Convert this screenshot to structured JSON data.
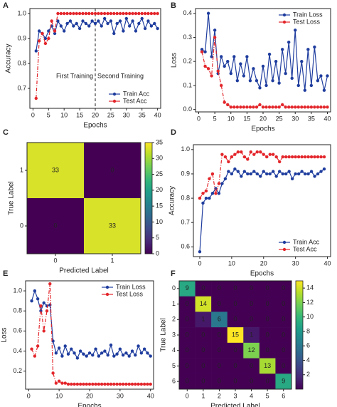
{
  "chart_data": [
    {
      "type": "line",
      "label": "A",
      "xlabel": "Epochs",
      "ylabel": "Accuracy",
      "x": [
        1,
        2,
        3,
        4,
        5,
        6,
        7,
        8,
        9,
        10,
        11,
        12,
        13,
        14,
        15,
        16,
        17,
        18,
        19,
        20,
        21,
        22,
        23,
        24,
        25,
        26,
        27,
        28,
        29,
        30,
        31,
        32,
        33,
        34,
        35,
        36,
        37,
        38,
        39,
        40
      ],
      "series": [
        {
          "name": "Train Acc",
          "color": "#1f3d9e",
          "values": [
            0.85,
            0.93,
            0.92,
            0.9,
            0.93,
            0.95,
            0.92,
            0.97,
            0.95,
            0.93,
            0.96,
            0.97,
            0.95,
            0.96,
            0.94,
            0.97,
            0.96,
            0.95,
            0.97,
            0.96,
            0.97,
            0.95,
            0.98,
            0.96,
            0.97,
            0.92,
            0.96,
            0.97,
            0.93,
            0.98,
            0.95,
            0.97,
            0.93,
            0.96,
            0.98,
            0.94,
            0.97,
            0.95,
            0.96,
            0.94
          ]
        },
        {
          "name": "Test Acc",
          "color": "#e3262b",
          "values": [
            0.66,
            0.89,
            0.92,
            0.88,
            0.9,
            0.97,
            0.93,
            1.0,
            1.0,
            1.0,
            1.0,
            1.0,
            1.0,
            1.0,
            1.0,
            1.0,
            1.0,
            1.0,
            1.0,
            1.0,
            1.0,
            1.0,
            1.0,
            1.0,
            1.0,
            1.0,
            1.0,
            1.0,
            1.0,
            1.0,
            1.0,
            1.0,
            1.0,
            1.0,
            1.0,
            1.0,
            1.0,
            1.0,
            1.0,
            1.0
          ]
        }
      ],
      "xlim": [
        -1,
        41
      ],
      "ylim": [
        0.62,
        1.02
      ],
      "xticks": [
        0,
        5,
        10,
        15,
        20,
        25,
        30,
        35,
        40
      ],
      "yticks": [
        0.7,
        0.8,
        0.9,
        {
          "value": 1,
          "label": "1.0"
        }
      ],
      "vline": 20,
      "annotations": [
        "First Training",
        "Second Training"
      ],
      "legend": "lower right"
    },
    {
      "type": "line",
      "label": "B",
      "xlabel": "Epochs",
      "ylabel": "Loss",
      "x": [
        1,
        2,
        3,
        4,
        5,
        6,
        7,
        8,
        9,
        10,
        11,
        12,
        13,
        14,
        15,
        16,
        17,
        18,
        19,
        20,
        21,
        22,
        23,
        24,
        25,
        26,
        27,
        28,
        29,
        30,
        31,
        32,
        33,
        34,
        35,
        36,
        37,
        38,
        39,
        40
      ],
      "series": [
        {
          "name": "Train Loss",
          "color": "#1f3d9e",
          "values": [
            0.25,
            0.24,
            0.4,
            0.22,
            0.33,
            0.15,
            0.22,
            0.18,
            0.2,
            0.15,
            0.22,
            0.12,
            0.19,
            0.14,
            0.22,
            0.12,
            0.17,
            0.12,
            0.09,
            0.18,
            0.1,
            0.23,
            0.12,
            0.2,
            0.11,
            0.25,
            0.15,
            0.28,
            0.13,
            0.33,
            0.1,
            0.2,
            0.08,
            0.25,
            0.1,
            0.26,
            0.12,
            0.14,
            0.08,
            0.14
          ]
        },
        {
          "name": "Test Loss",
          "color": "#e3262b",
          "values": [
            0.24,
            0.18,
            0.17,
            0.14,
            0.3,
            0.16,
            0.1,
            0.03,
            0.02,
            0.01,
            0.01,
            0.01,
            0.01,
            0.01,
            0.01,
            0.01,
            0.01,
            0.01,
            0.02,
            0.01,
            0.01,
            0.01,
            0.01,
            0.01,
            0.01,
            0.02,
            0.01,
            0.01,
            0.01,
            0.01,
            0.01,
            0.01,
            0.01,
            0.01,
            0.01,
            0.01,
            0.01,
            0.01,
            0.01,
            0.01
          ]
        }
      ],
      "xlim": [
        -1,
        41
      ],
      "ylim": [
        -0.01,
        0.42
      ],
      "xticks": [
        0,
        5,
        10,
        15,
        20,
        25,
        30,
        35,
        40
      ],
      "yticks": [
        {
          "value": 0,
          "label": "0.0"
        },
        0.1,
        0.2,
        0.3,
        0.4
      ],
      "legend": "upper right"
    },
    {
      "type": "heatmap",
      "label": "C",
      "xlabel": "Predicted Label",
      "ylabel": "True Label",
      "x_categories": [
        "0",
        "1"
      ],
      "y_categories": [
        "1",
        "0"
      ],
      "values": [
        [
          33,
          0
        ],
        [
          0,
          33
        ]
      ],
      "vlim": [
        0,
        35
      ],
      "cticks": [
        0,
        5,
        10,
        15,
        20,
        25,
        30,
        35
      ]
    },
    {
      "type": "line",
      "label": "D",
      "xlabel": "Epochs",
      "ylabel": "Accuracy",
      "x": [
        0,
        1,
        2,
        3,
        4,
        5,
        6,
        7,
        8,
        9,
        10,
        11,
        12,
        13,
        14,
        15,
        16,
        17,
        18,
        19,
        20,
        21,
        22,
        23,
        24,
        25,
        26,
        27,
        28,
        29,
        30,
        31,
        32,
        33,
        34,
        35,
        36,
        37,
        38,
        39
      ],
      "series": [
        {
          "name": "Train Acc",
          "color": "#1f3d9e",
          "values": [
            0.58,
            0.78,
            0.8,
            0.8,
            0.82,
            0.84,
            0.82,
            0.86,
            0.88,
            0.91,
            0.9,
            0.92,
            0.91,
            0.89,
            0.91,
            0.9,
            0.9,
            0.91,
            0.9,
            0.89,
            0.91,
            0.9,
            0.9,
            0.91,
            0.89,
            0.91,
            0.9,
            0.9,
            0.91,
            0.88,
            0.9,
            0.9,
            0.91,
            0.9,
            0.9,
            0.91,
            0.89,
            0.9,
            0.91,
            0.92
          ]
        },
        {
          "name": "Test Acc",
          "color": "#e3262b",
          "values": [
            0.8,
            0.82,
            0.83,
            0.88,
            0.9,
            0.82,
            0.86,
            0.98,
            0.97,
            0.95,
            0.97,
            0.98,
            0.99,
            0.99,
            0.97,
            0.96,
            0.99,
            0.98,
            0.99,
            0.99,
            0.98,
            0.97,
            0.98,
            0.98,
            0.97,
            0.95,
            0.97,
            0.97,
            0.97,
            0.97,
            0.97,
            0.97,
            0.97,
            0.97,
            0.97,
            0.97,
            0.97,
            0.97,
            0.97,
            0.97
          ]
        }
      ],
      "xlim": [
        -2,
        41
      ],
      "ylim": [
        0.56,
        1.02
      ],
      "xticks": [
        0,
        10,
        20,
        30,
        40
      ],
      "yticks": [
        0.6,
        0.7,
        0.8,
        0.9,
        {
          "value": 1,
          "label": "1.0"
        }
      ],
      "legend": "lower right"
    },
    {
      "type": "line",
      "label": "E",
      "xlabel": "Epochs",
      "ylabel": "Loss",
      "x": [
        1,
        2,
        3,
        4,
        5,
        6,
        7,
        8,
        9,
        10,
        11,
        12,
        13,
        14,
        15,
        16,
        17,
        18,
        19,
        20,
        21,
        22,
        23,
        24,
        25,
        26,
        27,
        28,
        29,
        30,
        31,
        32,
        33,
        34,
        35,
        36,
        37,
        38,
        39,
        40
      ],
      "series": [
        {
          "name": "Train Loss",
          "color": "#1f3d9e",
          "values": [
            0.9,
            1.0,
            0.92,
            0.8,
            0.88,
            0.85,
            0.86,
            0.5,
            0.38,
            0.43,
            0.35,
            0.45,
            0.37,
            0.42,
            0.38,
            0.33,
            0.4,
            0.37,
            0.35,
            0.38,
            0.36,
            0.42,
            0.35,
            0.38,
            0.4,
            0.36,
            0.46,
            0.35,
            0.37,
            0.42,
            0.36,
            0.38,
            0.35,
            0.4,
            0.36,
            0.45,
            0.38,
            0.42,
            0.38,
            0.35
          ]
        },
        {
          "name": "Test Loss",
          "color": "#e3262b",
          "values": [
            0.42,
            0.35,
            0.45,
            0.85,
            0.6,
            0.8,
            1.07,
            0.18,
            0.08,
            0.1,
            0.08,
            0.08,
            0.07,
            0.07,
            0.07,
            0.07,
            0.07,
            0.07,
            0.07,
            0.07,
            0.07,
            0.07,
            0.07,
            0.07,
            0.07,
            0.07,
            0.07,
            0.07,
            0.07,
            0.07,
            0.07,
            0.07,
            0.07,
            0.07,
            0.07,
            0.07,
            0.07,
            0.07,
            0.07,
            0.07
          ]
        }
      ],
      "xlim": [
        -1,
        41
      ],
      "ylim": [
        0.02,
        1.1
      ],
      "xticks": [
        0,
        10,
        20,
        30,
        40
      ],
      "yticks": [
        0.2,
        0.4,
        0.6,
        0.8,
        {
          "value": 1,
          "label": "1.0"
        }
      ],
      "legend": "upper right"
    },
    {
      "type": "heatmap",
      "label": "F",
      "xlabel": "Predicted Label",
      "ylabel": "True Label",
      "x_categories": [
        "0",
        "1",
        "2",
        "3",
        "4",
        "5",
        "6"
      ],
      "y_categories": [
        "0",
        "1",
        "2",
        "3",
        "4",
        "5",
        "6"
      ],
      "values": [
        [
          9,
          0,
          0,
          0,
          0,
          0,
          0
        ],
        [
          0,
          14,
          0,
          0,
          0,
          0,
          0
        ],
        [
          0,
          1,
          6,
          0,
          0,
          0,
          0
        ],
        [
          0,
          0,
          0,
          15,
          1,
          0,
          0
        ],
        [
          0,
          0,
          0,
          0,
          12,
          0,
          0
        ],
        [
          0,
          0,
          0,
          0,
          0,
          13,
          0
        ],
        [
          0,
          0,
          0,
          0,
          0,
          0,
          9
        ]
      ],
      "vlim": [
        0,
        15
      ],
      "cticks": [
        2,
        4,
        6,
        8,
        10,
        12,
        14
      ]
    }
  ]
}
